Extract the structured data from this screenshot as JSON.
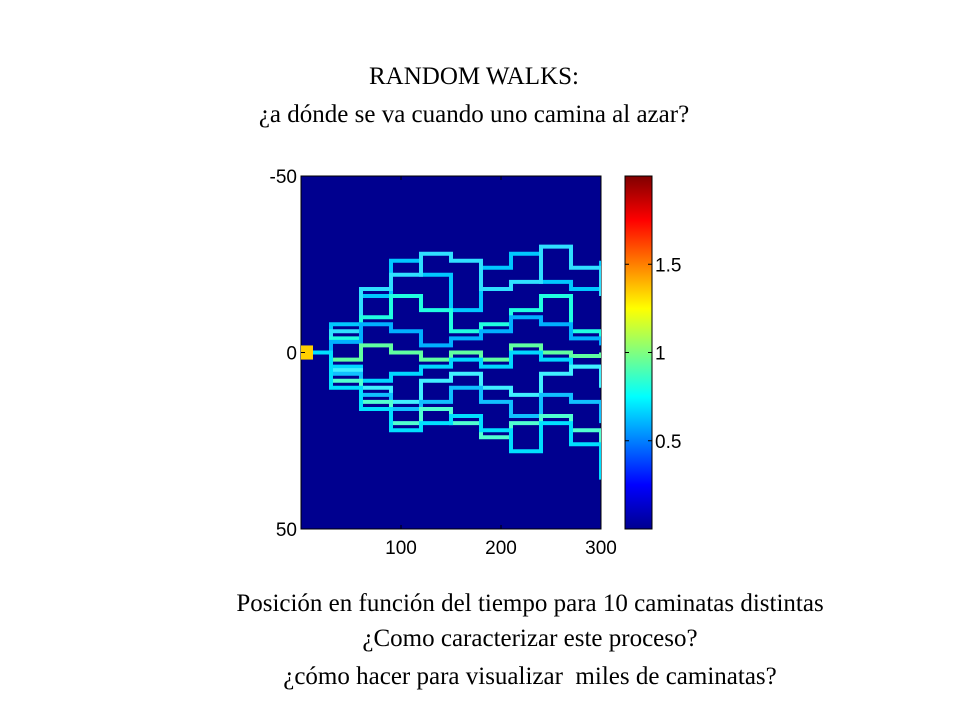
{
  "slide": {
    "title_line1": "RANDOM WALKS:",
    "title_line2": "¿a dónde se va cuando uno camina al azar?",
    "caption_line1": "Posición en función del tiempo para 10 caminatas distintas",
    "caption_line2": "¿Como caracterizar este proceso?",
    "caption_line3": "¿cómo hacer para visualizar  miles de caminatas?"
  },
  "chart_data": {
    "type": "heatmap",
    "title": "",
    "xlabel": "",
    "ylabel": "",
    "xlim": [
      0,
      300
    ],
    "ylim": [
      -50,
      50
    ],
    "y_reversed": true,
    "x_ticks": [
      100,
      200,
      300
    ],
    "x_tick_labels": [
      "100",
      "200",
      "300"
    ],
    "y_ticks": [
      -50,
      0,
      50
    ],
    "y_tick_labels": [
      "-50",
      "0",
      "50"
    ],
    "colormap": "jet",
    "background_color": "#00008f",
    "num_walks": 10,
    "colorbar": {
      "range": [
        0,
        2
      ],
      "ticks": [
        0.5,
        1,
        1.5
      ],
      "tick_labels": [
        "0.5",
        "1",
        "1.5"
      ],
      "placement": "right"
    },
    "walks": [
      {
        "x": [
          0,
          30,
          60,
          90,
          120,
          150,
          180,
          210,
          240,
          270,
          300
        ],
        "y": [
          0,
          -8,
          -16,
          -26,
          -22,
          -12,
          -24,
          -28,
          -20,
          -18,
          -26
        ]
      },
      {
        "x": [
          0,
          30,
          60,
          90,
          120,
          150,
          180,
          210,
          240,
          270,
          300
        ],
        "y": [
          0,
          -6,
          -18,
          -22,
          -28,
          -26,
          -18,
          -20,
          -30,
          -24,
          -16
        ]
      },
      {
        "x": [
          0,
          30,
          60,
          90,
          120,
          150,
          180,
          210,
          240,
          270,
          300
        ],
        "y": [
          0,
          -4,
          -10,
          -16,
          -12,
          -6,
          -8,
          -12,
          -16,
          -6,
          -4
        ]
      },
      {
        "x": [
          0,
          30,
          60,
          90,
          120,
          150,
          180,
          210,
          240,
          270,
          300
        ],
        "y": [
          0,
          -3,
          -8,
          -6,
          -2,
          -4,
          -6,
          -10,
          -8,
          -4,
          -2
        ]
      },
      {
        "x": [
          0,
          30,
          60,
          90,
          120,
          150,
          180,
          210,
          240,
          270,
          300
        ],
        "y": [
          0,
          2,
          -2,
          0,
          2,
          0,
          2,
          -2,
          0,
          1,
          0
        ]
      },
      {
        "x": [
          0,
          30,
          60,
          90,
          120,
          150,
          180,
          210,
          240,
          270,
          300
        ],
        "y": [
          0,
          4,
          8,
          6,
          4,
          2,
          4,
          0,
          2,
          4,
          8
        ]
      },
      {
        "x": [
          0,
          30,
          60,
          90,
          120,
          150,
          180,
          210,
          240,
          270,
          300
        ],
        "y": [
          0,
          5,
          10,
          14,
          8,
          6,
          10,
          12,
          6,
          4,
          10
        ]
      },
      {
        "x": [
          0,
          30,
          60,
          90,
          120,
          150,
          180,
          210,
          240,
          270,
          300
        ],
        "y": [
          0,
          6,
          12,
          16,
          14,
          10,
          14,
          18,
          12,
          14,
          20
        ]
      },
      {
        "x": [
          0,
          30,
          60,
          90,
          120,
          150,
          180,
          210,
          240,
          270,
          300
        ],
        "y": [
          0,
          8,
          14,
          20,
          16,
          20,
          24,
          20,
          18,
          22,
          28
        ]
      },
      {
        "x": [
          0,
          30,
          60,
          90,
          120,
          150,
          180,
          210,
          240,
          270,
          300
        ],
        "y": [
          0,
          10,
          16,
          22,
          20,
          18,
          22,
          28,
          20,
          26,
          36
        ]
      }
    ]
  }
}
